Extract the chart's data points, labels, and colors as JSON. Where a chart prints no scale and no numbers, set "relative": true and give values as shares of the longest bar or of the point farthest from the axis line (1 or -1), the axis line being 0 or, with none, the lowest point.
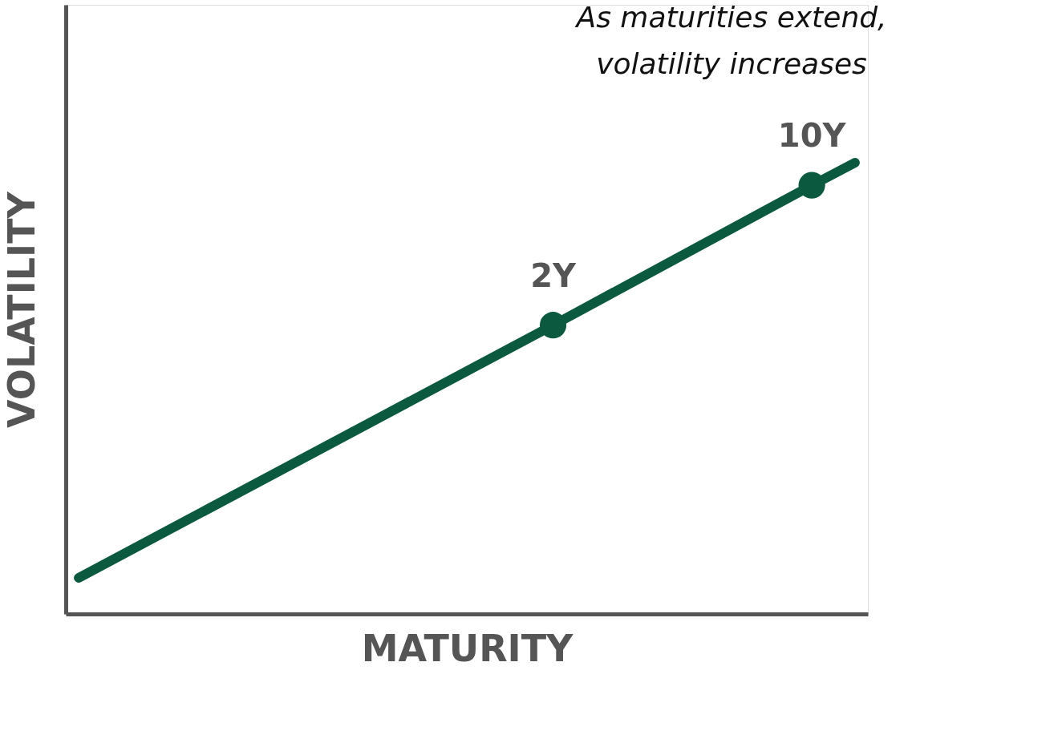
{
  "chart_data": {
    "type": "line",
    "relative": true,
    "xlabel": "MATURITY",
    "ylabel": "VOLATILITY",
    "annotations": [
      "As maturities extend,\nvolatility increases",
      {
        "text": "2Y",
        "y": 0.64
      },
      {
        "text": "10Y",
        "y": 0.95
      }
    ],
    "categories": [
      null,
      null,
      null,
      null,
      null,
      null,
      null,
      null,
      null,
      null,
      null,
      null,
      null,
      null,
      null,
      null,
      null,
      null,
      null
    ],
    "series": [
      {
        "type": "line",
        "color": "#0b5a40",
        "line_style": "solid",
        "values": [
          0.08,
          null,
          null,
          null,
          null,
          null,
          null,
          null,
          null,
          null,
          null,
          0.64,
          null,
          null,
          null,
          null,
          null,
          0.95,
          1.0
        ]
      }
    ]
  }
}
